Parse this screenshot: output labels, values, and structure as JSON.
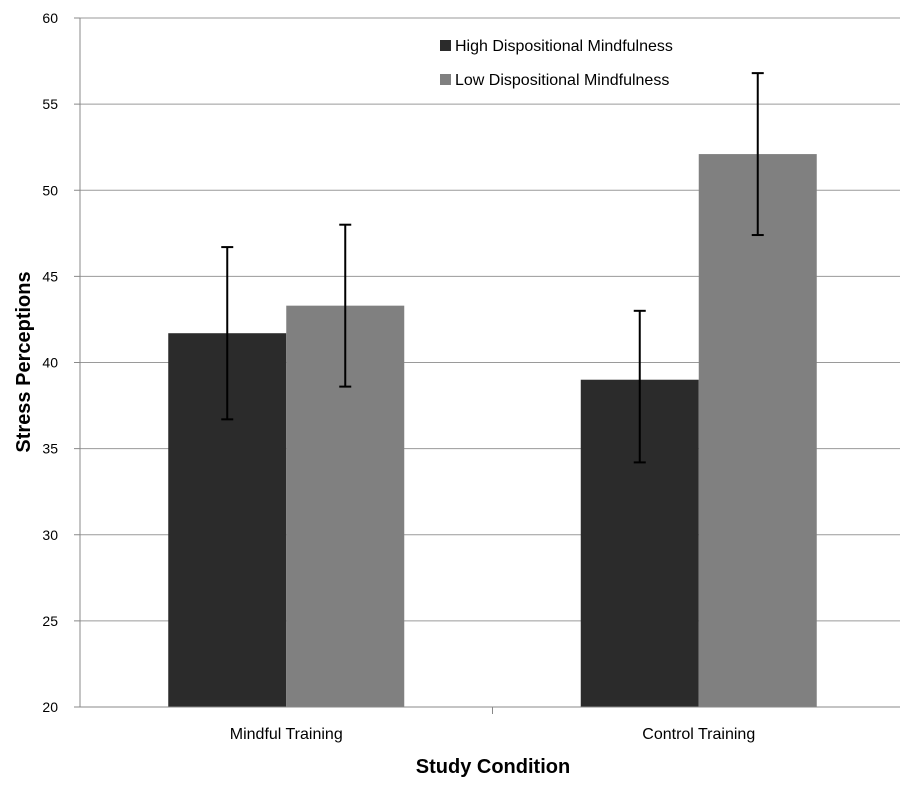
{
  "chart_data": {
    "type": "bar",
    "title": "",
    "xlabel": "Study Condition",
    "ylabel": "Stress Perceptions",
    "categories": [
      "Mindful Training",
      "Control Training"
    ],
    "series": [
      {
        "name": "High Dispositional Mindfulness",
        "color": "#2b2b2b",
        "values": [
          41.7,
          39.0
        ],
        "error_low": [
          36.7,
          34.2
        ],
        "error_high": [
          46.7,
          43.0
        ]
      },
      {
        "name": "Low Dispositional Mindfulness",
        "color": "#808080",
        "values": [
          43.3,
          52.1
        ],
        "error_low": [
          38.6,
          47.4
        ],
        "error_high": [
          48.0,
          56.8
        ]
      }
    ],
    "ylim": [
      20,
      60
    ],
    "yticks": [
      20,
      25,
      30,
      35,
      40,
      45,
      50,
      55,
      60
    ],
    "grid": true,
    "legend_position": "top-right"
  }
}
